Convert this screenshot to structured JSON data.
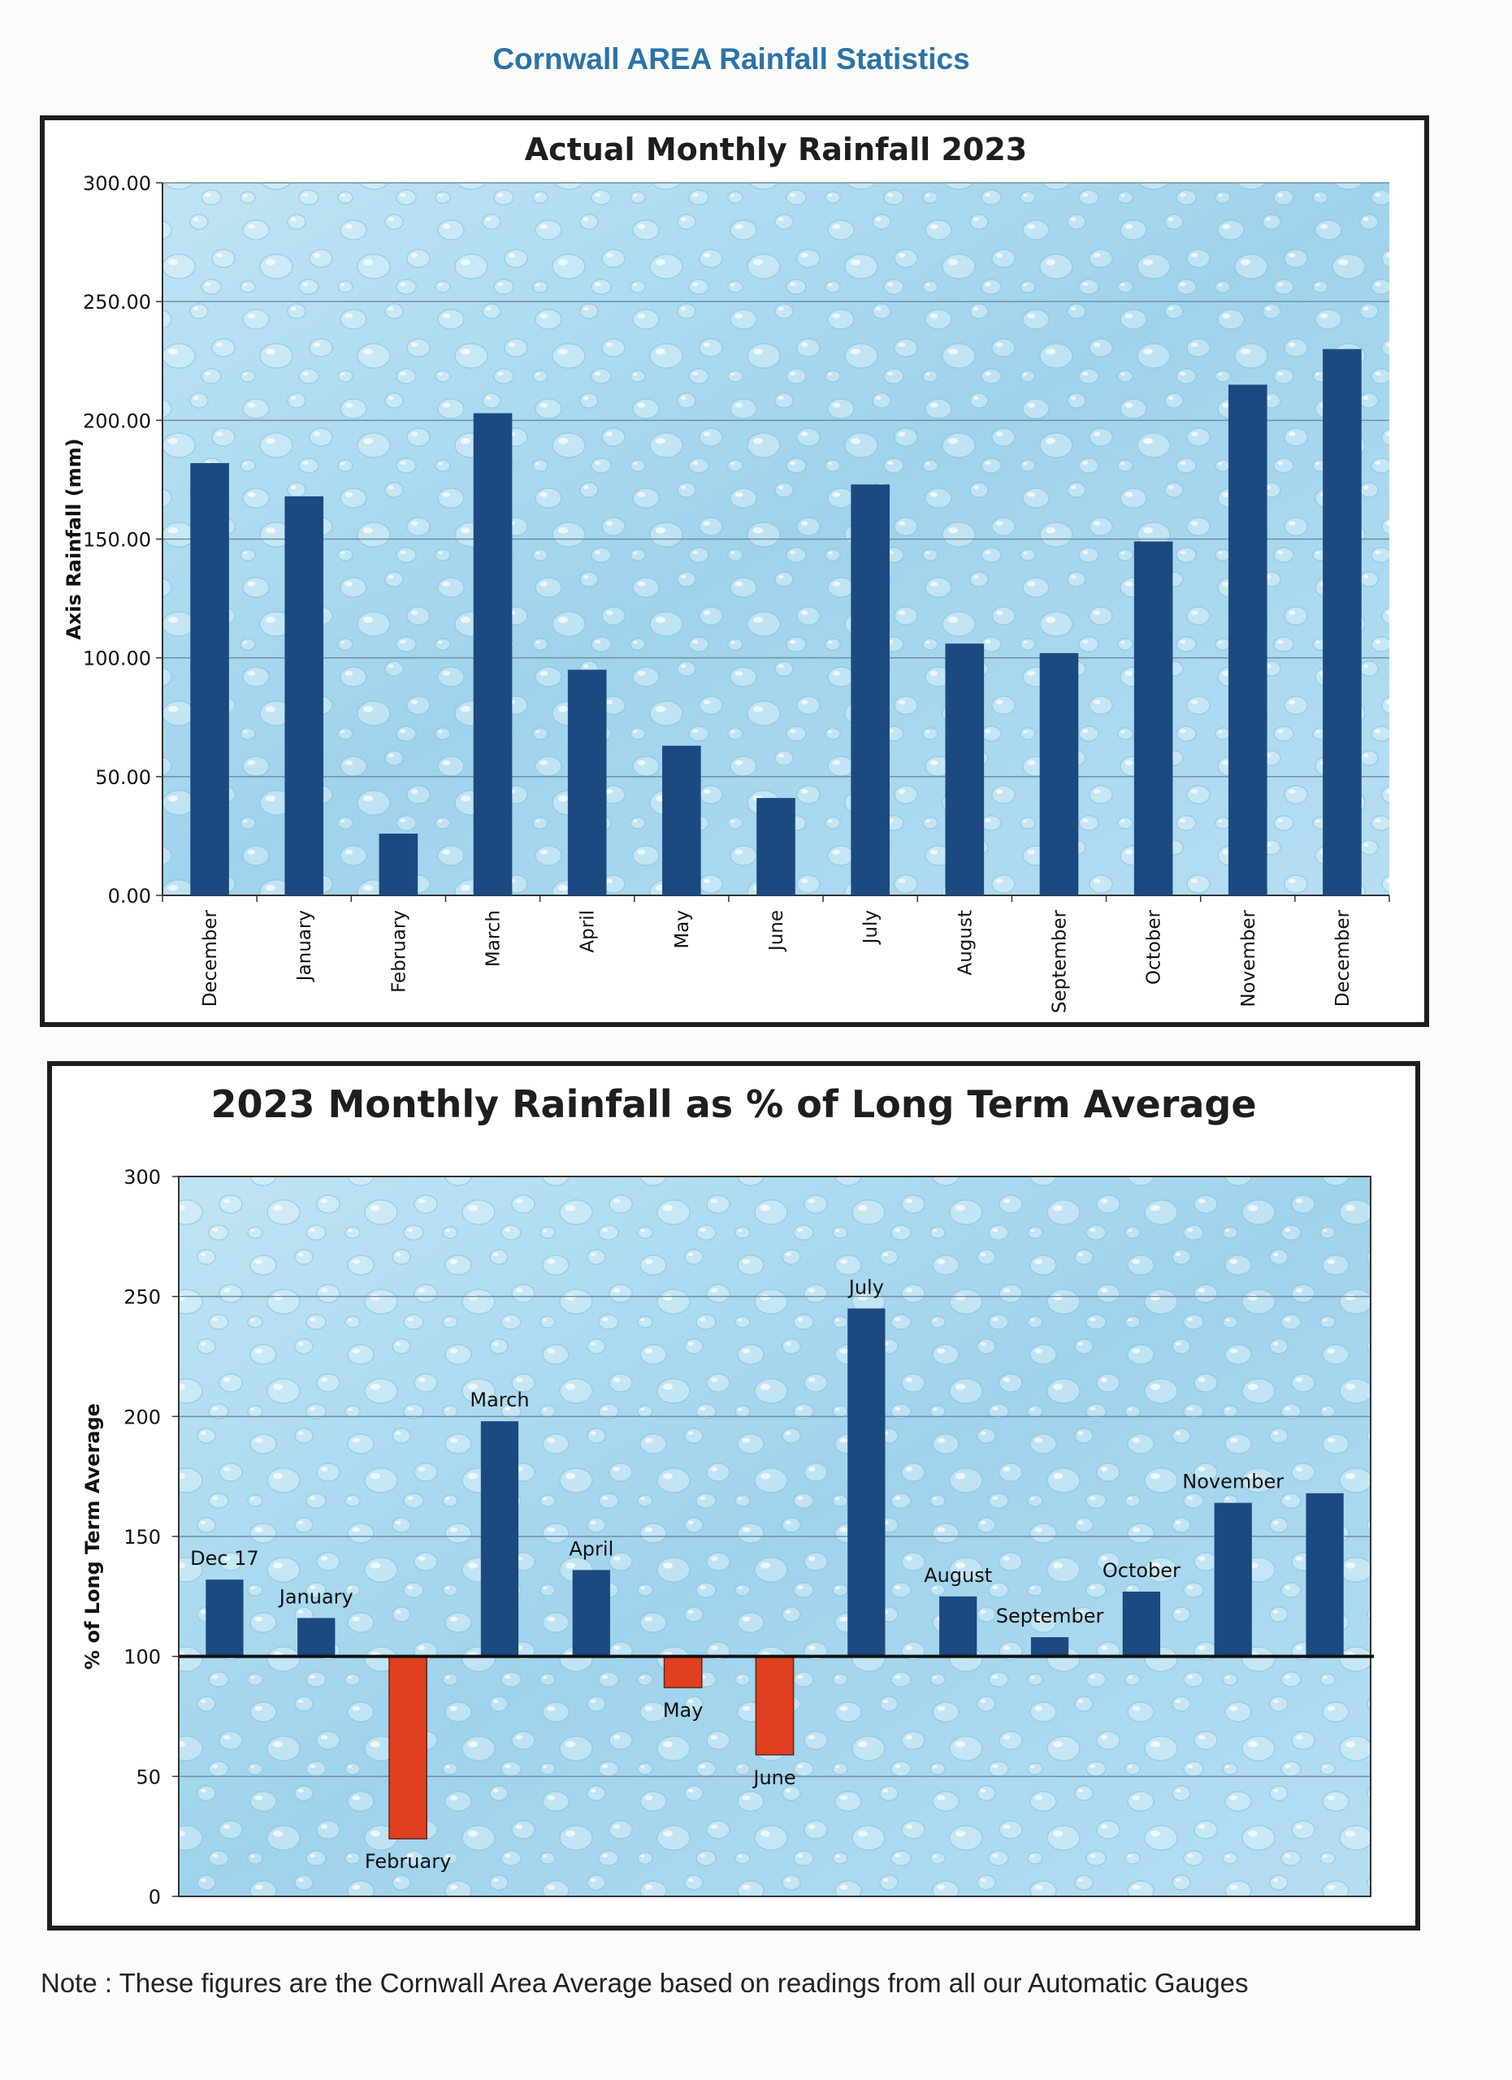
{
  "page": {
    "title": "Cornwall AREA Rainfall Statistics",
    "note": "Note : These figures are the Cornwall Area Average based on readings from all our Automatic Gauges"
  },
  "chart_data": [
    {
      "type": "bar",
      "title": "Actual Monthly Rainfall 2023",
      "xlabel": "",
      "ylabel": "Axis Rainfall (mm)",
      "ylim": [
        0,
        300
      ],
      "yticks": [
        "0.00",
        "50.00",
        "100.00",
        "150.00",
        "200.00",
        "250.00",
        "300.00"
      ],
      "grid": true,
      "categories": [
        "December",
        "January",
        "February",
        "March",
        "April",
        "May",
        "June",
        "July",
        "August",
        "September",
        "October",
        "November",
        "December"
      ],
      "values": [
        182,
        168,
        26,
        203,
        95,
        63,
        41,
        173,
        106,
        102,
        149,
        215,
        230
      ],
      "bar_color": "#1a4a80"
    },
    {
      "type": "bar",
      "title": "2023 Monthly Rainfall as % of Long Term Average",
      "xlabel": "",
      "ylabel": "% of Long Term Average",
      "ylim": [
        0,
        300
      ],
      "yticks": [
        "0",
        "50",
        "100",
        "150",
        "200",
        "250",
        "300"
      ],
      "baseline": 100,
      "grid": true,
      "categories": [
        "Dec 17",
        "January",
        "February",
        "March",
        "April",
        "May",
        "June",
        "July",
        "August",
        "September",
        "October",
        "November",
        ""
      ],
      "values": [
        132,
        116,
        24,
        198,
        136,
        87,
        59,
        245,
        125,
        108,
        127,
        164,
        168
      ],
      "above_color": "#1a4a80",
      "below_color": "#e0401f"
    }
  ]
}
